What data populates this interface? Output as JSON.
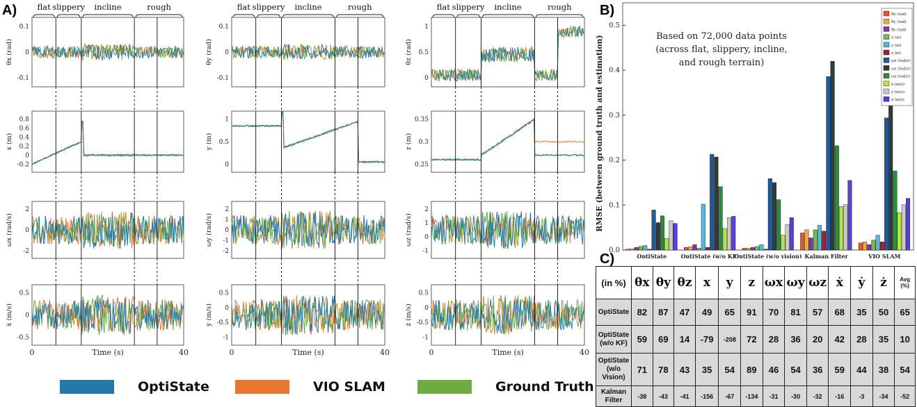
{
  "panel_labels": {
    "a": "A)",
    "b": "B)",
    "c": "C)"
  },
  "legend": [
    {
      "name": "OptiState",
      "color": "#2379a8"
    },
    {
      "name": "VIO SLAM",
      "color": "#e8772e"
    },
    {
      "name": "Ground Truth",
      "color": "#6eab43"
    }
  ],
  "segments": [
    "flat",
    "slippery",
    "incline",
    "rough"
  ],
  "x_axis": {
    "label": "Time (s)",
    "ticks": [
      "0",
      "40"
    ],
    "range": [
      0,
      40
    ],
    "dividers_s": [
      6.3,
      13.0,
      27.0,
      33.0
    ]
  },
  "timeseries_panels": [
    {
      "ylabel": "θx (rad)",
      "ticks": [
        "0.1",
        "0",
        "-0.1"
      ],
      "col": 0,
      "row": 0
    },
    {
      "ylabel": "x (m)",
      "ticks": [
        "0.8",
        "0.6",
        "0.4",
        "0.2",
        "0",
        "-0.2"
      ],
      "col": 0,
      "row": 1
    },
    {
      "ylabel": "ωx (rad/s)",
      "ticks": [
        "2",
        "0",
        "-2"
      ],
      "col": 0,
      "row": 2
    },
    {
      "ylabel": "ẋ (m/s)",
      "ticks": [
        "0.5",
        "0",
        "-0.5"
      ],
      "col": 0,
      "row": 3
    },
    {
      "ylabel": "θy (rad)",
      "ticks": [
        "0.1",
        "0",
        "-0.1"
      ],
      "col": 1,
      "row": 0
    },
    {
      "ylabel": "y (m)",
      "ticks": [
        "1",
        "0.5",
        "0"
      ],
      "col": 1,
      "row": 1
    },
    {
      "ylabel": "ωy (rad/s)",
      "ticks": [
        "2",
        "1",
        "0",
        "-1",
        "-2"
      ],
      "col": 1,
      "row": 2
    },
    {
      "ylabel": "ẏ (m/s)",
      "ticks": [
        "0.5",
        "0",
        "-0.5",
        "-1"
      ],
      "col": 1,
      "row": 3
    },
    {
      "ylabel": "θz (rad)",
      "ticks": [
        "1",
        "0.5",
        "0"
      ],
      "col": 2,
      "row": 0
    },
    {
      "ylabel": "z (m)",
      "ticks": [
        "0.35",
        "0.3",
        "0.25"
      ],
      "col": 2,
      "row": 1
    },
    {
      "ylabel": "ωz (rad/s)",
      "ticks": [
        "2",
        "1",
        "0",
        "-1"
      ],
      "col": 2,
      "row": 2
    },
    {
      "ylabel": "ż (m/s)",
      "ticks": [
        "0.5",
        "0",
        "-0.5",
        "-1"
      ],
      "col": 2,
      "row": 3
    }
  ],
  "chart_data": [
    {
      "type": "line",
      "note_ref": "Panel A: time-series comparisons (12 subplots) of OptiState, VIO SLAM and Ground Truth over 0-40 s",
      "series": [
        {
          "name": "OptiState"
        },
        {
          "name": "VIO SLAM"
        },
        {
          "name": "Ground Truth"
        }
      ],
      "x_range": [
        0,
        40
      ],
      "xlabel": "Time (s)"
    },
    {
      "type": "bar",
      "ylabel": "RMSE (between ground truth and estimation)",
      "ylim": [
        0,
        0.55
      ],
      "yticks": [
        "0.0",
        "0.1",
        "0.2",
        "0.3",
        "0.4",
        "0.5"
      ],
      "annotation": [
        "Based on 72,000 data points",
        "(across flat, slippery, incline,",
        "and rough terrain)"
      ],
      "categories": [
        "OptiState",
        "OptiState (w/o KF)",
        "OptiState (w/o vision)",
        "Kalman Filter",
        "VIO SLAM"
      ],
      "series": [
        {
          "name": "θx (rad)",
          "color": "#e8562a",
          "values": [
            0.002,
            0.006,
            0.004,
            0.038,
            0.016
          ]
        },
        {
          "name": "θy (rad)",
          "color": "#f0a83c",
          "values": [
            0.003,
            0.007,
            0.004,
            0.045,
            0.018
          ]
        },
        {
          "name": "θz (rad)",
          "color": "#7a3ca0",
          "values": [
            0.006,
            0.012,
            0.006,
            0.027,
            0.012
          ]
        },
        {
          "name": "x (m)",
          "color": "#77b84a",
          "values": [
            0.008,
            0.004,
            0.008,
            0.045,
            0.022
          ]
        },
        {
          "name": "y (m)",
          "color": "#55b8e0",
          "values": [
            0.01,
            0.102,
            0.012,
            0.055,
            0.033
          ]
        },
        {
          "name": "z (m)",
          "color": "#a3202e",
          "values": [
            0.002,
            0.006,
            0.002,
            0.042,
            0.018
          ]
        },
        {
          "name": "ωx (rad/s)",
          "color": "#1d5c9c",
          "values": [
            0.089,
            0.213,
            0.159,
            0.386,
            0.294
          ]
        },
        {
          "name": "ωy (rad/s)",
          "color": "#2f3b38",
          "values": [
            0.061,
            0.207,
            0.15,
            0.42,
            0.323
          ]
        },
        {
          "name": "ωz (rad/s)",
          "color": "#2f8a3c",
          "values": [
            0.076,
            0.141,
            0.112,
            0.232,
            0.176
          ]
        },
        {
          "name": "ẋ (m/s)",
          "color": "#b6e34a",
          "values": [
            0.026,
            0.048,
            0.033,
            0.097,
            0.083
          ]
        },
        {
          "name": "ẏ (m/s)",
          "color": "#c9c9c9",
          "values": [
            0.065,
            0.072,
            0.057,
            0.101,
            0.101
          ]
        },
        {
          "name": "ż (m/s)",
          "color": "#5a3ee0",
          "values": [
            0.059,
            0.075,
            0.072,
            0.155,
            0.115
          ]
        }
      ]
    },
    {
      "type": "table",
      "corner": "(in %)",
      "columns": [
        "θx",
        "θy",
        "θz",
        "x",
        "y",
        "z",
        "ωx",
        "ωy",
        "ωz",
        "ẋ",
        "ẏ",
        "ż",
        "Avg (%)"
      ],
      "rows": [
        {
          "name": "OptiState",
          "values": [
            "82",
            "87",
            "47",
            "49",
            "65",
            "91",
            "70",
            "81",
            "57",
            "68",
            "35",
            "50",
            "65"
          ]
        },
        {
          "name": "OptiState (w/o KF)",
          "values": [
            "59",
            "69",
            "14",
            "-79",
            "-208",
            "72",
            "28",
            "36",
            "20",
            "42",
            "28",
            "35",
            "10"
          ]
        },
        {
          "name": "OptiState (w/o Vision)",
          "values": [
            "71",
            "78",
            "43",
            "35",
            "54",
            "89",
            "46",
            "54",
            "36",
            "59",
            "44",
            "38",
            "54"
          ]
        },
        {
          "name": "Kalman Filter",
          "values": [
            "-38",
            "-43",
            "-41",
            "-156",
            "-67",
            "-134",
            "-31",
            "-30",
            "-32",
            "-16",
            "-3",
            "-34",
            "-52"
          ]
        }
      ]
    }
  ]
}
